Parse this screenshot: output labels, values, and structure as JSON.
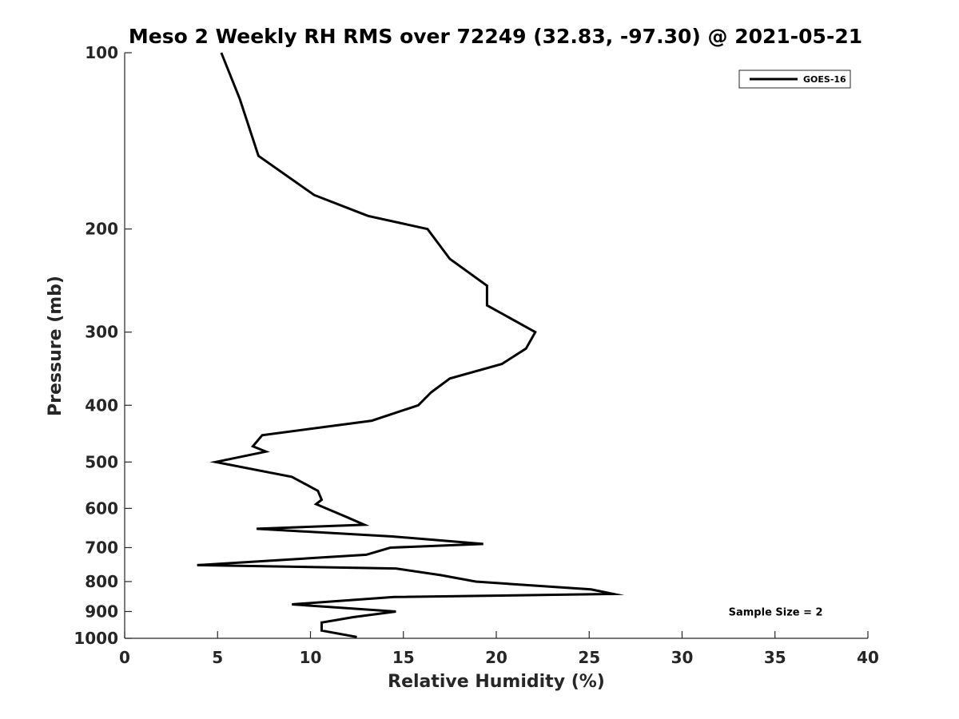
{
  "chart_data": {
    "type": "line",
    "title": "Meso 2 Weekly RH RMS over 72249 (32.83, -97.30) @ 2021-05-21",
    "xlabel": "Relative Humidity (%)",
    "ylabel": "Pressure (mb)",
    "xlim": [
      0,
      40
    ],
    "ylim": [
      100,
      1000
    ],
    "y_scale": "log",
    "y_reversed": true,
    "x_ticks": [
      0,
      5,
      10,
      15,
      20,
      25,
      30,
      35,
      40
    ],
    "x_tick_labels": [
      "0",
      "5",
      "10",
      "15",
      "20",
      "25",
      "30",
      "35",
      "40"
    ],
    "y_ticks": [
      100,
      200,
      300,
      400,
      500,
      600,
      700,
      800,
      900,
      1000
    ],
    "y_tick_labels": [
      "100",
      "200",
      "300",
      "400",
      "500",
      "600",
      "700",
      "800",
      "900",
      "1000"
    ],
    "grid": false,
    "legend_position": "top-right",
    "series": [
      {
        "name": "GOES-16",
        "color": "#000000",
        "x": [
          5.2,
          6.2,
          7.2,
          10.2,
          13.1,
          16.3,
          17.5,
          19.5,
          19.5,
          22.1,
          21.6,
          20.3,
          17.5,
          16.5,
          15.8,
          13.3,
          7.4,
          6.9,
          7.6,
          4.9,
          9.0,
          10.4,
          10.6,
          10.3,
          11.9,
          12.9,
          7.1,
          14.4,
          19.3,
          14.3,
          13.0,
          3.9,
          14.6,
          17.0,
          18.9,
          25.1,
          26.3,
          14.5,
          9.0,
          14.6,
          12.3,
          10.6,
          10.6,
          12.5
        ],
        "y": [
          100,
          120,
          150,
          175,
          190,
          200,
          225,
          250,
          270,
          300,
          320,
          340,
          360,
          380,
          400,
          425,
          450,
          470,
          480,
          500,
          530,
          560,
          580,
          590,
          620,
          640,
          650,
          670,
          690,
          700,
          720,
          750,
          760,
          780,
          800,
          825,
          840,
          850,
          875,
          900,
          920,
          940,
          970,
          995
        ]
      }
    ],
    "annotations": [
      {
        "text": "Sample Size = 2",
        "x": 32.5,
        "y": 900
      }
    ]
  }
}
